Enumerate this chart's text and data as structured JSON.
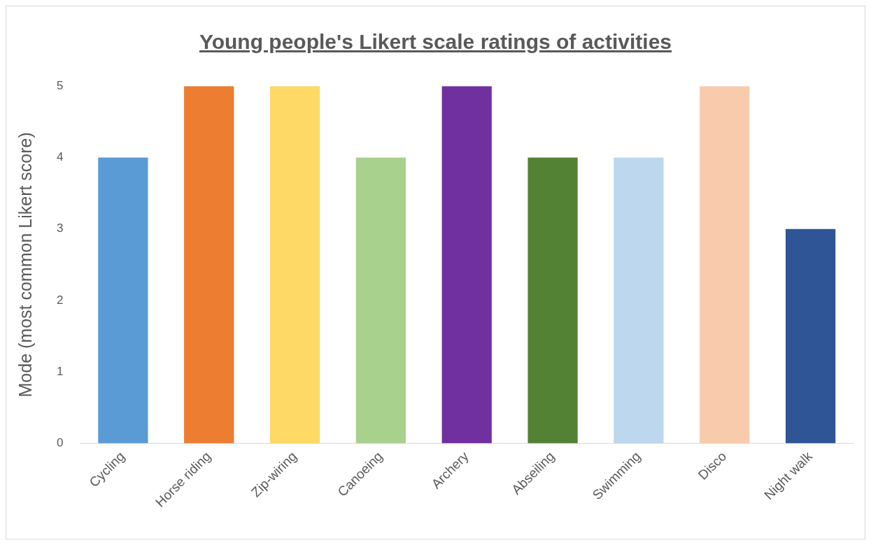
{
  "chart_data": {
    "type": "bar",
    "title": "Young people's Likert scale ratings of activities",
    "ylabel": "Mode (most common Likert score)",
    "categories": [
      "Cycling",
      "Horse riding",
      "Zip-wiring",
      "Canoeing",
      "Archery",
      "Abseiling",
      "Swimming",
      "Disco",
      "Night walk"
    ],
    "values": [
      4,
      5,
      5,
      4,
      5,
      4,
      4,
      5,
      3
    ],
    "colors": [
      "#5b9bd5",
      "#ed7d31",
      "#ffd966",
      "#a9d18e",
      "#7030a0",
      "#548235",
      "#bdd7ee",
      "#f8cbad",
      "#2f5597"
    ],
    "ylim": [
      0,
      5
    ],
    "yticks": [
      0,
      1,
      2,
      3,
      4,
      5
    ],
    "grid": false,
    "legend": false
  }
}
